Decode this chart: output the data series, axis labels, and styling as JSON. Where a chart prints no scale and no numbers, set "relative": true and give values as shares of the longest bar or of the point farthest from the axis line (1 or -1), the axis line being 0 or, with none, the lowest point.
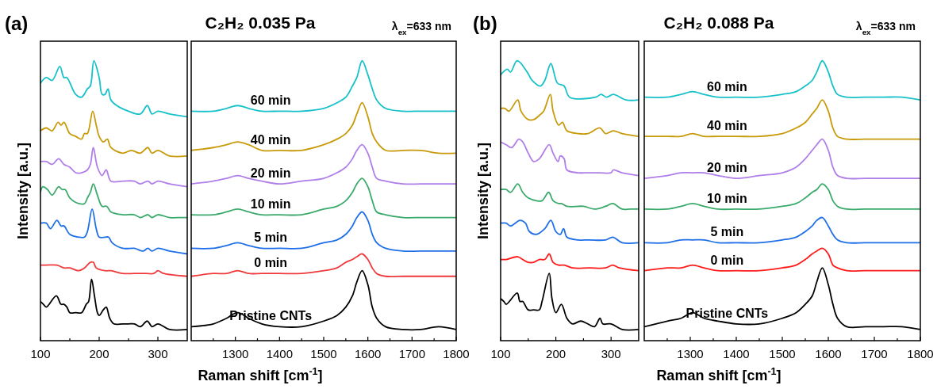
{
  "chart_data": [
    {
      "type": "line",
      "ylabel": "Intensity [a.u.]",
      "annotations": [
        "(a)"
      ],
      "relative": true,
      "xlim": [
        100,
        350
      ],
      "xticks": [
        100,
        {
          "value": 150,
          "label": null
        },
        200,
        {
          "value": 250,
          "label": null
        },
        300
      ],
      "series": [
        {
          "color": "#17c1c9",
          "x": [
            100,
            110,
            120,
            133,
            140,
            145,
            160,
            170,
            180,
            185,
            191,
            200,
            205,
            210,
            215,
            220,
            230,
            250,
            270,
            282,
            290,
            300,
            320,
            350
          ],
          "values": [
            0.92,
            0.94,
            0.93,
            0.98,
            0.94,
            0.94,
            0.88,
            0.87,
            0.9,
            0.91,
            1.0,
            0.94,
            0.88,
            0.88,
            0.9,
            0.86,
            0.84,
            0.82,
            0.81,
            0.84,
            0.81,
            0.82,
            0.81,
            0.8
          ]
        },
        {
          "color": "#c89a0a",
          "x": [
            100,
            110,
            120,
            130,
            135,
            140,
            150,
            160,
            170,
            175,
            180,
            189,
            195,
            200,
            207,
            214,
            220,
            240,
            255,
            270,
            283,
            290,
            300,
            320,
            350
          ],
          "values": [
            0.75,
            0.76,
            0.75,
            0.78,
            0.77,
            0.78,
            0.74,
            0.73,
            0.72,
            0.74,
            0.74,
            0.82,
            0.77,
            0.73,
            0.71,
            0.72,
            0.69,
            0.67,
            0.68,
            0.67,
            0.69,
            0.67,
            0.68,
            0.66,
            0.66
          ]
        },
        {
          "color": "#b07ee8",
          "x": [
            100,
            110,
            120,
            131,
            140,
            150,
            160,
            170,
            180,
            185,
            190,
            197,
            205,
            212,
            220,
            240,
            260,
            270,
            283,
            290,
            300,
            320,
            350
          ],
          "values": [
            0.64,
            0.64,
            0.63,
            0.65,
            0.63,
            0.62,
            0.6,
            0.6,
            0.61,
            0.63,
            0.69,
            0.62,
            0.59,
            0.61,
            0.57,
            0.57,
            0.57,
            0.56,
            0.57,
            0.56,
            0.57,
            0.56,
            0.55
          ]
        },
        {
          "color": "#3aaa6a",
          "x": [
            100,
            104,
            112,
            120,
            131,
            137,
            142,
            150,
            165,
            175,
            180,
            185,
            190,
            197,
            205,
            213,
            220,
            240,
            260,
            270,
            283,
            290,
            300,
            320,
            340,
            350
          ],
          "values": [
            0.53,
            0.55,
            0.54,
            0.52,
            0.55,
            0.54,
            0.54,
            0.51,
            0.49,
            0.49,
            0.51,
            0.53,
            0.56,
            0.52,
            0.48,
            0.48,
            0.46,
            0.45,
            0.45,
            0.44,
            0.45,
            0.44,
            0.45,
            0.44,
            0.44,
            0.44
          ]
        },
        {
          "color": "#1f6fe8",
          "x": [
            100,
            110,
            117,
            128,
            135,
            140,
            150,
            165,
            175,
            180,
            188,
            195,
            200,
            210,
            216,
            222,
            240,
            260,
            275,
            283,
            290,
            300,
            320,
            350
          ],
          "values": [
            0.42,
            0.42,
            0.4,
            0.43,
            0.41,
            0.41,
            0.38,
            0.37,
            0.37,
            0.39,
            0.47,
            0.4,
            0.37,
            0.37,
            0.37,
            0.35,
            0.33,
            0.33,
            0.32,
            0.33,
            0.32,
            0.33,
            0.32,
            0.31
          ]
        },
        {
          "color": "#f0393b",
          "x": [
            100,
            110,
            128,
            140,
            150,
            165,
            175,
            185,
            190,
            195,
            210,
            220,
            240,
            260,
            280,
            293,
            300,
            310,
            350
          ],
          "values": [
            0.27,
            0.27,
            0.27,
            0.26,
            0.26,
            0.25,
            0.26,
            0.28,
            0.28,
            0.26,
            0.25,
            0.25,
            0.24,
            0.24,
            0.24,
            0.24,
            0.25,
            0.24,
            0.23
          ]
        },
        {
          "color": "#000000",
          "x": [
            100,
            105,
            110,
            127,
            135,
            140,
            145,
            150,
            160,
            170,
            178,
            182,
            187,
            192,
            197,
            200,
            207,
            212,
            218,
            225,
            240,
            250,
            260,
            270,
            282,
            290,
            300,
            320,
            350
          ],
          "values": [
            0.14,
            0.13,
            0.12,
            0.16,
            0.13,
            0.13,
            0.12,
            0.1,
            0.1,
            0.1,
            0.13,
            0.14,
            0.22,
            0.16,
            0.1,
            0.09,
            0.11,
            0.12,
            0.08,
            0.06,
            0.06,
            0.06,
            0.06,
            0.05,
            0.07,
            0.05,
            0.06,
            0.04,
            0.04
          ]
        }
      ]
    },
    {
      "type": "line",
      "title": "C₂H₂ 0.035 Pa",
      "xlabel": "Raman shift [cm$^{-1}$]",
      "annotations": [
        "λ$_{ex}$=633 nm"
      ],
      "relative": true,
      "xlim": [
        1200,
        1800
      ],
      "xticks": [
        {
          "value": 1250,
          "label": null
        },
        1300,
        {
          "value": 1350,
          "label": null
        },
        1400,
        {
          "value": 1450,
          "label": null
        },
        1500,
        {
          "value": 1550,
          "label": null
        },
        1600,
        {
          "value": 1650,
          "label": null
        },
        1700,
        {
          "value": 1750,
          "label": null
        },
        1800
      ],
      "x": [
        1200,
        1250,
        1280,
        1305,
        1330,
        1360,
        1400,
        1450,
        1500,
        1530,
        1550,
        1565,
        1575,
        1587,
        1600,
        1610,
        1620,
        1640,
        1680,
        1720,
        1760,
        1800
      ],
      "series": [
        {
          "name": "60 min",
          "color": "#17c1c9",
          "values": [
            0.82,
            0.82,
            0.83,
            0.84,
            0.83,
            0.82,
            0.82,
            0.82,
            0.83,
            0.85,
            0.87,
            0.91,
            0.94,
            1.0,
            0.95,
            0.9,
            0.86,
            0.83,
            0.82,
            0.82,
            0.82,
            0.82
          ]
        },
        {
          "name": "40 min",
          "color": "#c89a0a",
          "values": [
            0.68,
            0.69,
            0.7,
            0.71,
            0.7,
            0.68,
            0.68,
            0.68,
            0.7,
            0.72,
            0.74,
            0.77,
            0.81,
            0.85,
            0.8,
            0.74,
            0.71,
            0.68,
            0.68,
            0.68,
            0.67,
            0.67
          ]
        },
        {
          "name": "20 min",
          "color": "#b07ee8",
          "values": [
            0.56,
            0.57,
            0.58,
            0.59,
            0.58,
            0.57,
            0.56,
            0.57,
            0.58,
            0.6,
            0.62,
            0.65,
            0.68,
            0.7,
            0.67,
            0.62,
            0.58,
            0.57,
            0.56,
            0.56,
            0.56,
            0.56
          ]
        },
        {
          "name": "10 min",
          "color": "#3aaa6a",
          "values": [
            0.45,
            0.45,
            0.46,
            0.47,
            0.46,
            0.45,
            0.45,
            0.45,
            0.47,
            0.48,
            0.5,
            0.53,
            0.56,
            0.58,
            0.55,
            0.5,
            0.46,
            0.45,
            0.44,
            0.44,
            0.44,
            0.44
          ]
        },
        {
          "name": "5 min",
          "color": "#1f6fe8",
          "values": [
            0.33,
            0.33,
            0.34,
            0.35,
            0.34,
            0.33,
            0.33,
            0.33,
            0.35,
            0.36,
            0.38,
            0.41,
            0.44,
            0.46,
            0.43,
            0.38,
            0.35,
            0.33,
            0.32,
            0.32,
            0.32,
            0.32
          ]
        },
        {
          "name": "0 min",
          "color": "#f0393b",
          "values": [
            0.23,
            0.24,
            0.24,
            0.25,
            0.24,
            0.24,
            0.24,
            0.24,
            0.25,
            0.26,
            0.28,
            0.29,
            0.3,
            0.31,
            0.29,
            0.26,
            0.24,
            0.23,
            0.23,
            0.23,
            0.23,
            0.23
          ]
        },
        {
          "name": "Pristine CNTs",
          "color": "#000000",
          "values": [
            0.05,
            0.06,
            0.08,
            0.1,
            0.08,
            0.06,
            0.05,
            0.05,
            0.07,
            0.09,
            0.12,
            0.16,
            0.21,
            0.25,
            0.2,
            0.12,
            0.08,
            0.05,
            0.04,
            0.04,
            0.05,
            0.04
          ]
        }
      ]
    },
    {
      "type": "line",
      "ylabel": "Intensity [a.u.]",
      "annotations": [
        "(b)"
      ],
      "relative": true,
      "xlim": [
        100,
        350
      ],
      "xticks": [
        100,
        {
          "value": 150,
          "label": null
        },
        200,
        {
          "value": 250,
          "label": null
        },
        300
      ],
      "series": [
        {
          "color": "#17c1c9",
          "x": [
            100,
            112,
            118,
            130,
            148,
            157,
            172,
            180,
            191,
            203,
            215,
            225,
            272,
            282,
            292,
            304,
            327,
            350
          ],
          "values": [
            0.95,
            0.97,
            0.96,
            1.0,
            0.96,
            0.93,
            0.91,
            0.93,
            0.99,
            0.92,
            0.91,
            0.87,
            0.87,
            0.88,
            0.87,
            0.88,
            0.86,
            0.86
          ]
        },
        {
          "color": "#c89a0a",
          "x": [
            100,
            108,
            115,
            131,
            137,
            150,
            160,
            173,
            178,
            190,
            195,
            205,
            212,
            220,
            240,
            258,
            280,
            290,
            304,
            320,
            350
          ],
          "values": [
            0.83,
            0.83,
            0.82,
            0.86,
            0.82,
            0.79,
            0.79,
            0.81,
            0.82,
            0.88,
            0.82,
            0.77,
            0.78,
            0.75,
            0.74,
            0.74,
            0.76,
            0.74,
            0.75,
            0.74,
            0.73
          ]
        },
        {
          "color": "#b07ee8",
          "x": [
            100,
            110,
            120,
            133,
            140,
            150,
            160,
            170,
            188,
            195,
            204,
            208,
            215,
            220,
            240,
            260,
            280,
            300,
            304,
            320,
            350
          ],
          "values": [
            0.71,
            0.7,
            0.69,
            0.72,
            0.71,
            0.67,
            0.64,
            0.65,
            0.7,
            0.67,
            0.64,
            0.66,
            0.65,
            0.61,
            0.6,
            0.6,
            0.6,
            0.6,
            0.61,
            0.6,
            0.59
          ]
        },
        {
          "color": "#3aaa6a",
          "x": [
            100,
            110,
            118,
            131,
            140,
            150,
            165,
            175,
            187,
            195,
            205,
            210,
            220,
            250,
            270,
            290,
            303,
            320,
            335,
            350
          ],
          "values": [
            0.54,
            0.54,
            0.53,
            0.56,
            0.53,
            0.51,
            0.5,
            0.5,
            0.53,
            0.5,
            0.49,
            0.49,
            0.48,
            0.48,
            0.47,
            0.48,
            0.49,
            0.47,
            0.47,
            0.47
          ]
        },
        {
          "color": "#1f6fe8",
          "x": [
            100,
            110,
            118,
            135,
            145,
            152,
            165,
            180,
            191,
            200,
            208,
            214,
            220,
            240,
            260,
            290,
            303,
            320,
            350
          ],
          "values": [
            0.42,
            0.42,
            0.41,
            0.43,
            0.42,
            0.39,
            0.38,
            0.4,
            0.43,
            0.39,
            0.38,
            0.4,
            0.37,
            0.36,
            0.36,
            0.36,
            0.37,
            0.35,
            0.35
          ]
        },
        {
          "color": "#ff1a1a",
          "x": [
            100,
            110,
            131,
            140,
            150,
            160,
            170,
            180,
            188,
            195,
            205,
            215,
            230,
            260,
            290,
            303,
            315,
            350
          ],
          "values": [
            0.29,
            0.29,
            0.3,
            0.29,
            0.28,
            0.28,
            0.29,
            0.29,
            0.31,
            0.28,
            0.27,
            0.27,
            0.26,
            0.26,
            0.26,
            0.27,
            0.26,
            0.25
          ]
        },
        {
          "color": "#000000",
          "x": [
            100,
            106,
            110,
            130,
            135,
            140,
            150,
            160,
            170,
            175,
            188,
            193,
            200,
            210,
            220,
            230,
            245,
            258,
            270,
            280,
            285,
            300,
            320,
            350
          ],
          "values": [
            0.15,
            0.14,
            0.13,
            0.17,
            0.14,
            0.14,
            0.11,
            0.11,
            0.11,
            0.14,
            0.24,
            0.15,
            0.1,
            0.13,
            0.08,
            0.06,
            0.07,
            0.06,
            0.05,
            0.08,
            0.06,
            0.06,
            0.04,
            0.04
          ]
        }
      ]
    },
    {
      "type": "line",
      "title": "C₂H₂ 0.088 Pa",
      "xlabel": "Raman shift [cm$^{-1}$]",
      "annotations": [
        "λ$_{ex}$=633 nm"
      ],
      "relative": true,
      "xlim": [
        1200,
        1800
      ],
      "xticks": [
        {
          "value": 1250,
          "label": null
        },
        1300,
        {
          "value": 1350,
          "label": null
        },
        1400,
        {
          "value": 1450,
          "label": null
        },
        1500,
        {
          "value": 1550,
          "label": null
        },
        1600,
        {
          "value": 1650,
          "label": null
        },
        1700,
        {
          "value": 1750,
          "label": null
        },
        1800
      ],
      "x": [
        1200,
        1250,
        1280,
        1305,
        1330,
        1360,
        1400,
        1450,
        1500,
        1530,
        1550,
        1565,
        1575,
        1587,
        1600,
        1610,
        1620,
        1640,
        1680,
        1720,
        1760,
        1800
      ],
      "series": [
        {
          "name": "60 min",
          "color": "#17c1c9",
          "values": [
            0.87,
            0.87,
            0.88,
            0.89,
            0.88,
            0.87,
            0.87,
            0.87,
            0.88,
            0.89,
            0.91,
            0.93,
            0.96,
            1.0,
            0.96,
            0.91,
            0.88,
            0.87,
            0.87,
            0.87,
            0.87,
            0.86
          ]
        },
        {
          "name": "40 min",
          "color": "#c89a0a",
          "values": [
            0.73,
            0.73,
            0.73,
            0.74,
            0.73,
            0.73,
            0.73,
            0.73,
            0.74,
            0.76,
            0.78,
            0.81,
            0.83,
            0.86,
            0.82,
            0.76,
            0.73,
            0.72,
            0.72,
            0.72,
            0.72,
            0.72
          ]
        },
        {
          "name": "20 min",
          "color": "#b07ee8",
          "values": [
            0.58,
            0.59,
            0.6,
            0.6,
            0.6,
            0.59,
            0.58,
            0.59,
            0.6,
            0.62,
            0.65,
            0.68,
            0.7,
            0.72,
            0.68,
            0.62,
            0.59,
            0.58,
            0.58,
            0.58,
            0.58,
            0.58
          ]
        },
        {
          "name": "10 min",
          "color": "#3aaa6a",
          "values": [
            0.47,
            0.47,
            0.48,
            0.49,
            0.48,
            0.47,
            0.47,
            0.47,
            0.48,
            0.49,
            0.51,
            0.53,
            0.54,
            0.56,
            0.54,
            0.5,
            0.48,
            0.47,
            0.47,
            0.47,
            0.47,
            0.47
          ]
        },
        {
          "name": "5 min",
          "color": "#1f6fe8",
          "values": [
            0.35,
            0.35,
            0.36,
            0.36,
            0.36,
            0.35,
            0.35,
            0.35,
            0.36,
            0.37,
            0.39,
            0.41,
            0.43,
            0.44,
            0.41,
            0.38,
            0.36,
            0.35,
            0.35,
            0.35,
            0.35,
            0.35
          ]
        },
        {
          "name": "0 min",
          "color": "#ff1a1a",
          "values": [
            0.25,
            0.26,
            0.26,
            0.27,
            0.26,
            0.25,
            0.25,
            0.25,
            0.26,
            0.27,
            0.29,
            0.31,
            0.32,
            0.33,
            0.31,
            0.27,
            0.26,
            0.25,
            0.25,
            0.25,
            0.25,
            0.25
          ]
        },
        {
          "name": "Pristine CNTs",
          "color": "#000000",
          "values": [
            0.05,
            0.07,
            0.08,
            0.1,
            0.08,
            0.07,
            0.06,
            0.06,
            0.08,
            0.1,
            0.13,
            0.16,
            0.21,
            0.26,
            0.2,
            0.13,
            0.08,
            0.05,
            0.05,
            0.05,
            0.05,
            0.04
          ]
        }
      ]
    }
  ]
}
